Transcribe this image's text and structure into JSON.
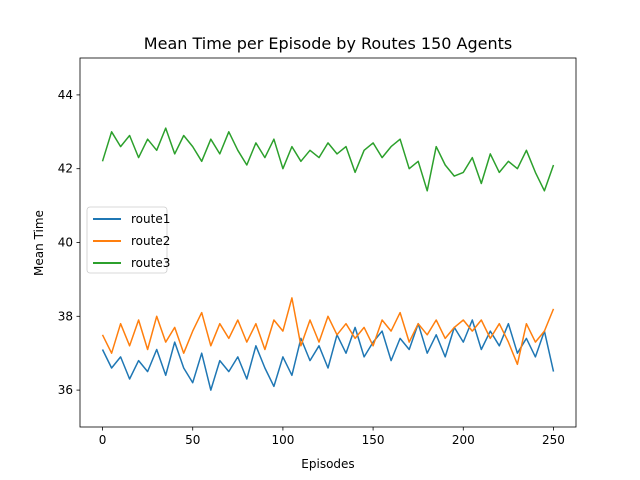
{
  "chart_data": {
    "type": "line",
    "title": "Mean Time per Episode by Routes 150 Agents",
    "xlabel": "Episodes",
    "ylabel": "Mean Time",
    "xlim": [
      -12.5,
      262.5
    ],
    "ylim": [
      35.0,
      45.0
    ],
    "xticks": [
      0,
      50,
      100,
      150,
      200,
      250
    ],
    "yticks": [
      36,
      38,
      40,
      42,
      44
    ],
    "grid": false,
    "legend_position": "center-left",
    "series": [
      {
        "name": "route1",
        "color": "#1f77b4",
        "x": [
          0,
          5,
          10,
          15,
          20,
          25,
          30,
          35,
          40,
          45,
          50,
          55,
          60,
          65,
          70,
          75,
          80,
          85,
          90,
          95,
          100,
          105,
          110,
          115,
          120,
          125,
          130,
          135,
          140,
          145,
          150,
          155,
          160,
          165,
          170,
          175,
          180,
          185,
          190,
          195,
          200,
          205,
          210,
          215,
          220,
          225,
          230,
          235,
          240,
          245,
          250
        ],
        "values": [
          37.1,
          36.6,
          36.9,
          36.3,
          36.8,
          36.5,
          37.1,
          36.4,
          37.3,
          36.6,
          36.2,
          37.0,
          36.0,
          36.8,
          36.5,
          36.9,
          36.3,
          37.2,
          36.6,
          36.1,
          36.9,
          36.4,
          37.4,
          36.8,
          37.2,
          36.6,
          37.5,
          37.0,
          37.7,
          36.9,
          37.3,
          37.6,
          36.8,
          37.4,
          37.1,
          37.8,
          37.0,
          37.5,
          36.9,
          37.7,
          37.3,
          37.9,
          37.1,
          37.6,
          37.2,
          37.8,
          37.0,
          37.4,
          36.9,
          37.6,
          36.5
        ]
      },
      {
        "name": "route2",
        "color": "#ff7f0e",
        "x": [
          0,
          5,
          10,
          15,
          20,
          25,
          30,
          35,
          40,
          45,
          50,
          55,
          60,
          65,
          70,
          75,
          80,
          85,
          90,
          95,
          100,
          105,
          110,
          115,
          120,
          125,
          130,
          135,
          140,
          145,
          150,
          155,
          160,
          165,
          170,
          175,
          180,
          185,
          190,
          195,
          200,
          205,
          210,
          215,
          220,
          225,
          230,
          235,
          240,
          245,
          250
        ],
        "values": [
          37.5,
          37.0,
          37.8,
          37.2,
          37.9,
          37.1,
          38.0,
          37.3,
          37.7,
          37.0,
          37.6,
          38.1,
          37.2,
          37.8,
          37.4,
          37.9,
          37.3,
          37.8,
          37.1,
          37.9,
          37.6,
          38.5,
          37.2,
          37.9,
          37.3,
          38.0,
          37.5,
          37.8,
          37.4,
          37.7,
          37.2,
          37.9,
          37.6,
          38.1,
          37.3,
          37.8,
          37.5,
          37.9,
          37.4,
          37.7,
          37.9,
          37.6,
          37.9,
          37.4,
          37.8,
          37.3,
          36.7,
          37.8,
          37.3,
          37.6,
          38.2
        ]
      },
      {
        "name": "route3",
        "color": "#2ca02c",
        "x": [
          0,
          5,
          10,
          15,
          20,
          25,
          30,
          35,
          40,
          45,
          50,
          55,
          60,
          65,
          70,
          75,
          80,
          85,
          90,
          95,
          100,
          105,
          110,
          115,
          120,
          125,
          130,
          135,
          140,
          145,
          150,
          155,
          160,
          165,
          170,
          175,
          180,
          185,
          190,
          195,
          200,
          205,
          210,
          215,
          220,
          225,
          230,
          235,
          240,
          245,
          250
        ],
        "values": [
          42.2,
          43.0,
          42.6,
          42.9,
          42.3,
          42.8,
          42.5,
          43.1,
          42.4,
          42.9,
          42.6,
          42.2,
          42.8,
          42.4,
          43.0,
          42.5,
          42.1,
          42.7,
          42.3,
          42.8,
          42.0,
          42.6,
          42.2,
          42.5,
          42.3,
          42.7,
          42.4,
          42.6,
          41.9,
          42.5,
          42.7,
          42.3,
          42.6,
          42.8,
          42.0,
          42.2,
          41.4,
          42.6,
          42.1,
          41.8,
          41.9,
          42.3,
          41.6,
          42.4,
          41.9,
          42.2,
          42.0,
          42.5,
          41.9,
          41.4,
          42.1
        ]
      }
    ]
  }
}
